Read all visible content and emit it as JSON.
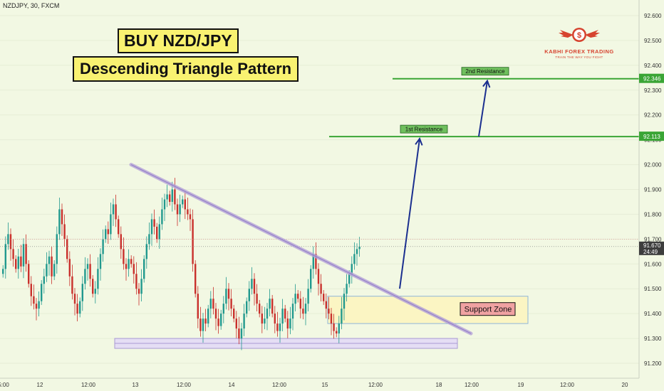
{
  "header": {
    "symbol": "NZDJPY, 30, FXCM",
    "title_main": "BUY NZD/JPY",
    "title_sub": "Descending Triangle Pattern"
  },
  "logo": {
    "name": "KABHI FOREX TRADING",
    "tagline": "TRAIN THE WAY YOU FIGHT",
    "symbol": "$"
  },
  "colors": {
    "background": "#f2f8e3",
    "bull": "#21998e",
    "bear": "#c9302c",
    "resistance": "#3aa535",
    "trendline": "#b5a2d8",
    "arrow": "#1b2f8f",
    "support_zone_fill": "#fbf5c3",
    "price_badge": "#3d3d3d"
  },
  "chart_data": {
    "type": "candlestick",
    "symbol": "NZDJPY",
    "timeframe": "30",
    "source": "FXCM",
    "ylim": [
      91.17,
      92.66
    ],
    "y_ticks": [
      "92.600",
      "92.500",
      "92.400",
      "92.300",
      "92.200",
      "92.100",
      "92.000",
      "91.900",
      "91.800",
      "91.700",
      "91.600",
      "91.500",
      "91.400",
      "91.300",
      "91.200"
    ],
    "x_ticks": [
      "5:00",
      "12",
      "12:00",
      "13",
      "12:00",
      "14",
      "12:00",
      "15",
      "12:00",
      "18",
      "12:00",
      "19",
      "12:00",
      "20"
    ],
    "last_price": "91.670",
    "countdown": "24:49",
    "levels": [
      {
        "label": "1st Resistance",
        "price": 92.113,
        "price_label": "92.113"
      },
      {
        "label": "2nd Resistance",
        "price": 92.346,
        "price_label": "92.346"
      }
    ],
    "support_zone": {
      "label": "Support Zone",
      "low": 91.36,
      "high": 91.47
    },
    "support_line": {
      "low": 91.26,
      "high": 91.3
    },
    "descending_trendline": {
      "from": 92.0,
      "to": 91.32
    },
    "close_path": [
      91.58,
      91.68,
      91.72,
      91.66,
      91.62,
      91.58,
      91.63,
      91.59,
      91.68,
      91.6,
      91.52,
      91.47,
      91.44,
      91.42,
      91.45,
      91.52,
      91.55,
      91.6,
      91.63,
      91.55,
      91.6,
      91.72,
      91.82,
      91.76,
      91.7,
      91.62,
      91.55,
      91.48,
      91.44,
      91.4,
      91.45,
      91.52,
      91.58,
      91.6,
      91.54,
      91.48,
      91.5,
      91.58,
      91.64,
      91.7,
      91.74,
      91.72,
      91.8,
      91.84,
      91.78,
      91.72,
      91.66,
      91.6,
      91.58,
      91.62,
      91.6,
      91.56,
      91.5,
      91.48,
      91.54,
      91.62,
      91.68,
      91.72,
      91.78,
      91.75,
      91.7,
      91.76,
      91.82,
      91.86,
      91.88,
      91.85,
      91.9,
      91.84,
      91.8,
      91.84,
      91.86,
      91.82,
      91.8,
      91.78,
      91.6,
      91.48,
      91.38,
      91.33,
      91.38,
      91.36,
      91.42,
      91.46,
      91.42,
      91.38,
      91.35,
      91.4,
      91.44,
      91.5,
      91.46,
      91.42,
      91.38,
      91.34,
      91.3,
      91.34,
      91.4,
      91.45,
      91.5,
      91.54,
      91.48,
      91.44,
      91.4,
      91.36,
      91.38,
      91.42,
      91.46,
      91.4,
      91.36,
      91.33,
      91.36,
      91.42,
      91.38,
      91.34,
      91.38,
      91.44,
      91.48,
      91.46,
      91.42,
      91.4,
      91.44,
      91.5,
      91.58,
      91.64,
      91.58,
      91.52,
      91.48,
      91.45,
      91.42,
      91.4,
      91.36,
      91.33,
      91.32,
      91.36,
      91.42,
      91.48,
      91.52,
      91.56,
      91.6,
      91.64,
      91.66,
      91.67
    ]
  }
}
